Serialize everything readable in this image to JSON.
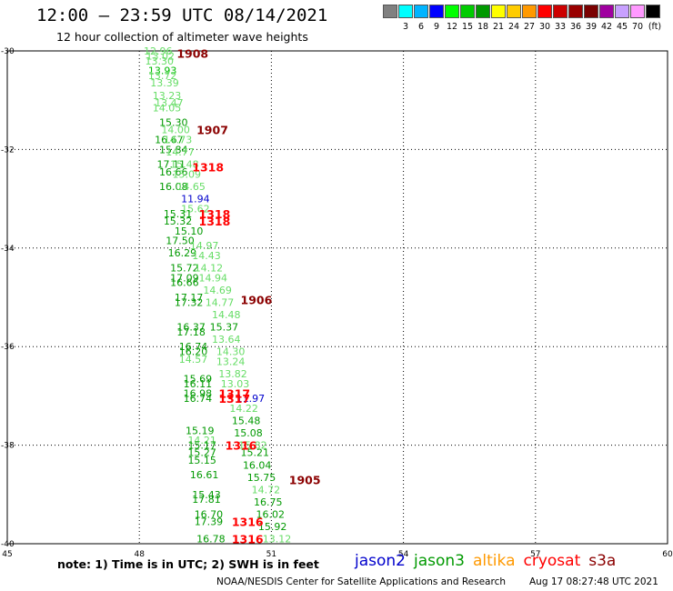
{
  "title": "12:00 – 23:59 UTC 08/14/2021",
  "subtitle": "12 hour collection of altimeter wave heights",
  "legend": {
    "unit": "(ft)",
    "items": [
      {
        "label": "",
        "color": "#808080"
      },
      {
        "label": "3",
        "color": "#00ffff"
      },
      {
        "label": "6",
        "color": "#00b4ff"
      },
      {
        "label": "9",
        "color": "#0000ff"
      },
      {
        "label": "12",
        "color": "#00ff00"
      },
      {
        "label": "15",
        "color": "#00cc00"
      },
      {
        "label": "18",
        "color": "#009900"
      },
      {
        "label": "21",
        "color": "#ffff00"
      },
      {
        "label": "24",
        "color": "#ffcc00"
      },
      {
        "label": "27",
        "color": "#ff9900"
      },
      {
        "label": "30",
        "color": "#ff0000"
      },
      {
        "label": "33",
        "color": "#cc0000"
      },
      {
        "label": "36",
        "color": "#990000"
      },
      {
        "label": "39",
        "color": "#7a0000"
      },
      {
        "label": "42",
        "color": "#a000a0"
      },
      {
        "label": "45",
        "color": "#c8a0ff"
      },
      {
        "label": "70",
        "color": "#ff99ff"
      },
      {
        "label": "",
        "color": "#000000"
      }
    ]
  },
  "axes": {
    "lon_ticks": [
      45,
      48,
      51,
      54,
      57,
      60
    ],
    "lat_ticks": [
      -30,
      -32,
      -34,
      -36,
      -38,
      -40
    ],
    "lon_range": [
      45,
      60
    ],
    "lat_range": [
      -40,
      -30
    ]
  },
  "colors": {
    "light": "#66dd66",
    "mid": "#00bb00",
    "dark": "#009900",
    "blue": "#0000cc",
    "red": "#ff0000",
    "darkred": "#8b0000"
  },
  "passes": [
    {
      "label": "1908",
      "lon": 48.85,
      "lat": -30.05,
      "color": "darkred"
    },
    {
      "label": "1907",
      "lon": 49.3,
      "lat": -31.6,
      "color": "darkred"
    },
    {
      "label": "1318",
      "lon": 49.2,
      "lat": -32.35,
      "color": "red"
    },
    {
      "label": "1318",
      "lon": 49.35,
      "lat": -33.3,
      "color": "red"
    },
    {
      "label": "1318",
      "lon": 49.35,
      "lat": -33.45,
      "color": "red"
    },
    {
      "label": "1906",
      "lon": 50.3,
      "lat": -35.05,
      "color": "darkred"
    },
    {
      "label": "1317",
      "lon": 49.8,
      "lat": -36.95,
      "color": "red"
    },
    {
      "label": "1317",
      "lon": 49.8,
      "lat": -37.05,
      "color": "red"
    },
    {
      "label": "1316",
      "lon": 49.95,
      "lat": -38.0,
      "color": "red"
    },
    {
      "label": "1905",
      "lon": 51.4,
      "lat": -38.7,
      "color": "darkred"
    },
    {
      "label": "1316",
      "lon": 50.1,
      "lat": -39.55,
      "color": "red"
    },
    {
      "label": "1316",
      "lon": 50.1,
      "lat": -39.9,
      "color": "red"
    }
  ],
  "observations": [
    {
      "v": "12.96",
      "lon": 48.1,
      "lat": -30.0,
      "c": "light"
    },
    {
      "v": "13.02",
      "lon": 48.15,
      "lat": -30.1,
      "c": "light"
    },
    {
      "v": "13.30",
      "lon": 48.13,
      "lat": -30.2,
      "c": "light"
    },
    {
      "v": "13.93",
      "lon": 48.2,
      "lat": -30.4,
      "c": "mid"
    },
    {
      "v": "13.72",
      "lon": 48.2,
      "lat": -30.5,
      "c": "light"
    },
    {
      "v": "13.39",
      "lon": 48.25,
      "lat": -30.65,
      "c": "light"
    },
    {
      "v": "13.23",
      "lon": 48.3,
      "lat": -30.9,
      "c": "light"
    },
    {
      "v": "13.47",
      "lon": 48.35,
      "lat": -31.05,
      "c": "light"
    },
    {
      "v": "14.05",
      "lon": 48.3,
      "lat": -31.15,
      "c": "light"
    },
    {
      "v": "15.30",
      "lon": 48.45,
      "lat": -31.45,
      "c": "dark"
    },
    {
      "v": "14.00",
      "lon": 48.5,
      "lat": -31.6,
      "c": "light"
    },
    {
      "v": "16.67",
      "lon": 48.35,
      "lat": -31.8,
      "c": "dark"
    },
    {
      "v": "14.73",
      "lon": 48.55,
      "lat": -31.8,
      "c": "light"
    },
    {
      "v": "15.84",
      "lon": 48.45,
      "lat": -32.0,
      "c": "dark"
    },
    {
      "v": "14.77",
      "lon": 48.6,
      "lat": -32.05,
      "c": "light"
    },
    {
      "v": "17.11",
      "lon": 48.4,
      "lat": -32.3,
      "c": "dark"
    },
    {
      "v": "15.48",
      "lon": 48.7,
      "lat": -32.3,
      "c": "light"
    },
    {
      "v": "16.66",
      "lon": 48.45,
      "lat": -32.45,
      "c": "dark"
    },
    {
      "v": "15.09",
      "lon": 48.75,
      "lat": -32.5,
      "c": "light"
    },
    {
      "v": "16.08",
      "lon": 48.45,
      "lat": -32.75,
      "c": "dark"
    },
    {
      "v": "14.65",
      "lon": 48.85,
      "lat": -32.75,
      "c": "light"
    },
    {
      "v": "11.94",
      "lon": 48.95,
      "lat": -33.0,
      "c": "blue"
    },
    {
      "v": "15.62",
      "lon": 48.95,
      "lat": -33.2,
      "c": "light"
    },
    {
      "v": "15.31",
      "lon": 48.55,
      "lat": -33.3,
      "c": "dark"
    },
    {
      "v": "15.32",
      "lon": 48.55,
      "lat": -33.45,
      "c": "dark"
    },
    {
      "v": "15.10",
      "lon": 48.8,
      "lat": -33.65,
      "c": "dark"
    },
    {
      "v": "17.50",
      "lon": 48.6,
      "lat": -33.85,
      "c": "dark"
    },
    {
      "v": "14.97",
      "lon": 49.15,
      "lat": -33.95,
      "c": "light"
    },
    {
      "v": "16.29",
      "lon": 48.65,
      "lat": -34.1,
      "c": "dark"
    },
    {
      "v": "14.43",
      "lon": 49.2,
      "lat": -34.15,
      "c": "light"
    },
    {
      "v": "15.72",
      "lon": 48.7,
      "lat": -34.4,
      "c": "dark"
    },
    {
      "v": "14.12",
      "lon": 49.25,
      "lat": -34.4,
      "c": "light"
    },
    {
      "v": "17.09",
      "lon": 48.7,
      "lat": -34.6,
      "c": "dark"
    },
    {
      "v": "14.94",
      "lon": 49.35,
      "lat": -34.6,
      "c": "light"
    },
    {
      "v": "16.66",
      "lon": 48.7,
      "lat": -34.7,
      "c": "dark"
    },
    {
      "v": "14.69",
      "lon": 49.45,
      "lat": -34.85,
      "c": "light"
    },
    {
      "v": "17.17",
      "lon": 48.8,
      "lat": -35.0,
      "c": "dark"
    },
    {
      "v": "17.32",
      "lon": 48.8,
      "lat": -35.1,
      "c": "dark"
    },
    {
      "v": "14.77",
      "lon": 49.5,
      "lat": -35.1,
      "c": "light"
    },
    {
      "v": "14.48",
      "lon": 49.65,
      "lat": -35.35,
      "c": "light"
    },
    {
      "v": "16.37",
      "lon": 48.85,
      "lat": -35.6,
      "c": "dark"
    },
    {
      "v": "15.37",
      "lon": 49.6,
      "lat": -35.6,
      "c": "dark"
    },
    {
      "v": "17.18",
      "lon": 48.85,
      "lat": -35.7,
      "c": "dark"
    },
    {
      "v": "13.64",
      "lon": 49.65,
      "lat": -35.85,
      "c": "light"
    },
    {
      "v": "16.74",
      "lon": 48.9,
      "lat": -36.0,
      "c": "dark"
    },
    {
      "v": "14.30",
      "lon": 49.75,
      "lat": -36.1,
      "c": "light"
    },
    {
      "v": "16.20",
      "lon": 48.9,
      "lat": -36.1,
      "c": "dark"
    },
    {
      "v": "14.57",
      "lon": 48.9,
      "lat": -36.25,
      "c": "light"
    },
    {
      "v": "13.24",
      "lon": 49.75,
      "lat": -36.3,
      "c": "light"
    },
    {
      "v": "13.82",
      "lon": 49.8,
      "lat": -36.55,
      "c": "light"
    },
    {
      "v": "15.69",
      "lon": 49.0,
      "lat": -36.65,
      "c": "dark"
    },
    {
      "v": "16.11",
      "lon": 49.0,
      "lat": -36.75,
      "c": "dark"
    },
    {
      "v": "13.03",
      "lon": 49.85,
      "lat": -36.75,
      "c": "light"
    },
    {
      "v": "16.98",
      "lon": 49.0,
      "lat": -36.95,
      "c": "dark"
    },
    {
      "v": "16.74",
      "lon": 49.0,
      "lat": -37.05,
      "c": "dark"
    },
    {
      "v": "11.97",
      "lon": 50.2,
      "lat": -37.05,
      "c": "blue"
    },
    {
      "v": "14.22",
      "lon": 50.05,
      "lat": -37.25,
      "c": "light"
    },
    {
      "v": "15.48",
      "lon": 50.1,
      "lat": -37.5,
      "c": "dark"
    },
    {
      "v": "15.19",
      "lon": 49.05,
      "lat": -37.7,
      "c": "dark"
    },
    {
      "v": "15.08",
      "lon": 50.15,
      "lat": -37.75,
      "c": "dark"
    },
    {
      "v": "14.21",
      "lon": 49.1,
      "lat": -37.9,
      "c": "light"
    },
    {
      "v": "15.17",
      "lon": 49.1,
      "lat": -38.0,
      "c": "dark"
    },
    {
      "v": "15.82",
      "lon": 50.25,
      "lat": -38.0,
      "c": "light"
    },
    {
      "v": "15.27",
      "lon": 49.1,
      "lat": -38.15,
      "c": "dark"
    },
    {
      "v": "15.21",
      "lon": 50.3,
      "lat": -38.15,
      "c": "dark"
    },
    {
      "v": "15.15",
      "lon": 49.1,
      "lat": -38.3,
      "c": "dark"
    },
    {
      "v": "16.04",
      "lon": 50.35,
      "lat": -38.4,
      "c": "dark"
    },
    {
      "v": "16.61",
      "lon": 49.15,
      "lat": -38.6,
      "c": "dark"
    },
    {
      "v": "15.75",
      "lon": 50.45,
      "lat": -38.65,
      "c": "dark"
    },
    {
      "v": "14.72",
      "lon": 50.55,
      "lat": -38.9,
      "c": "light"
    },
    {
      "v": "15.43",
      "lon": 49.2,
      "lat": -39.0,
      "c": "dark"
    },
    {
      "v": "17.81",
      "lon": 49.2,
      "lat": -39.1,
      "c": "dark"
    },
    {
      "v": "16.75",
      "lon": 50.6,
      "lat": -39.15,
      "c": "dark"
    },
    {
      "v": "16.70",
      "lon": 49.25,
      "lat": -39.4,
      "c": "dark"
    },
    {
      "v": "16.02",
      "lon": 50.65,
      "lat": -39.4,
      "c": "dark"
    },
    {
      "v": "17.39",
      "lon": 49.25,
      "lat": -39.55,
      "c": "dark"
    },
    {
      "v": "15.92",
      "lon": 50.7,
      "lat": -39.65,
      "c": "dark"
    },
    {
      "v": "16.78",
      "lon": 49.3,
      "lat": -39.9,
      "c": "dark"
    },
    {
      "v": "13.12",
      "lon": 50.8,
      "lat": -39.9,
      "c": "light"
    }
  ],
  "note": "note:  1) Time is in UTC; 2) SWH is in feet",
  "satellites": [
    {
      "name": "jason2",
      "color": "#0000cc"
    },
    {
      "name": "jason3",
      "color": "#009900"
    },
    {
      "name": "altika",
      "color": "#ff9900"
    },
    {
      "name": "cryosat",
      "color": "#ff0000"
    },
    {
      "name": "s3a",
      "color": "#8b0000"
    }
  ],
  "footer": {
    "credit": "NOAA/NESDIS Center for Satellite Applications and Research",
    "timestamp": "Aug 17 08:27:48 UTC 2021"
  }
}
